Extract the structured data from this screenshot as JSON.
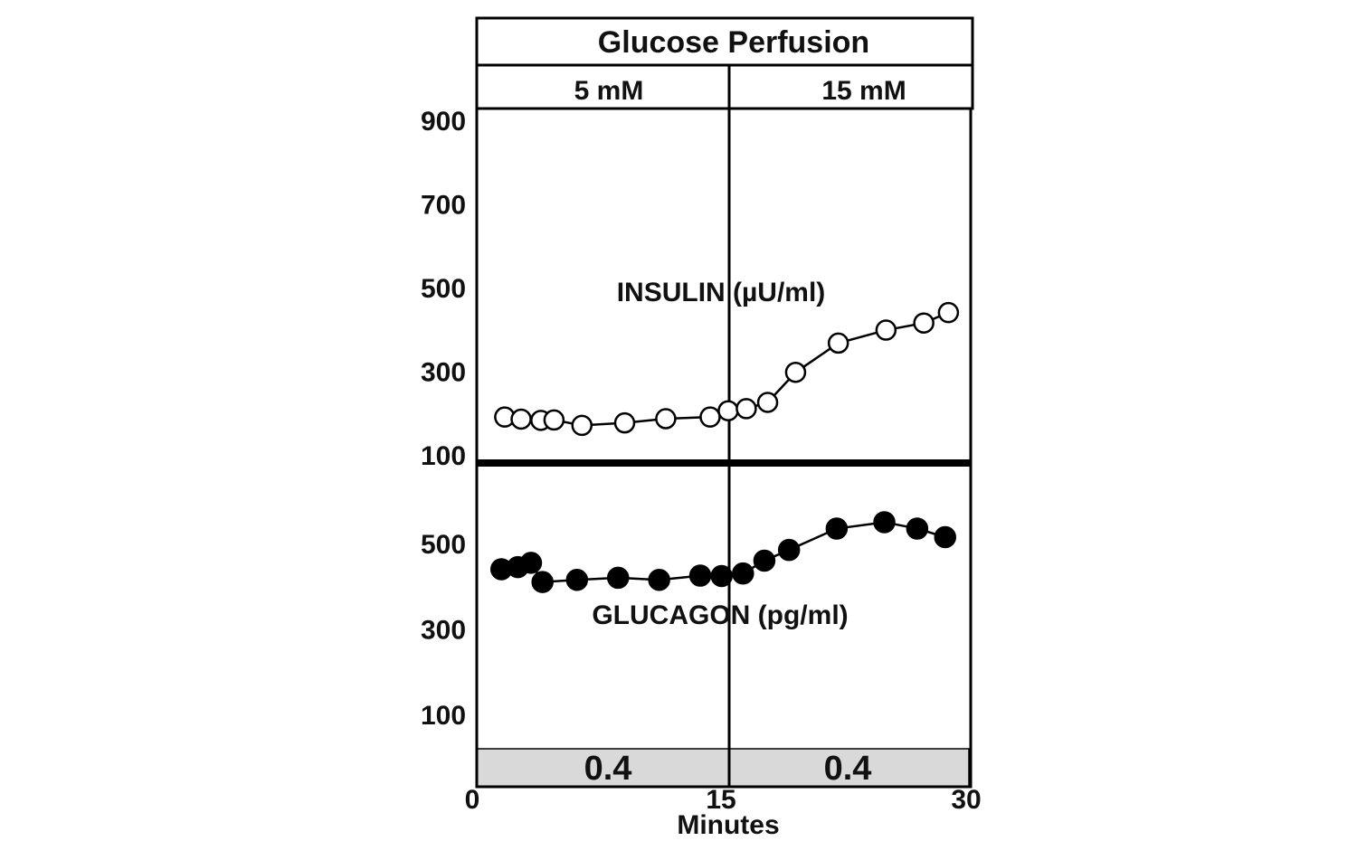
{
  "chart_data": {
    "type": "line",
    "title": "Glucose Perfusion",
    "phases": [
      "5 mM",
      "15 mM"
    ],
    "xlabel": "Minutes",
    "xlim": [
      0,
      30
    ],
    "x_ticks": [
      "0",
      "15",
      "30"
    ],
    "panels": [
      {
        "name": "insulin",
        "annotation": "INSULIN (µU/ml)",
        "ylim": [
          80,
          950
        ],
        "y_ticks": [
          {
            "value": 900,
            "label": "900"
          },
          {
            "value": 700,
            "label": "700"
          },
          {
            "value": 500,
            "label": "500"
          },
          {
            "value": 300,
            "label": "300"
          },
          {
            "value": 100,
            "label": "100"
          }
        ],
        "series": [
          {
            "marker": "open-circle",
            "points": [
              [
                1.7,
                190
              ],
              [
                2.7,
                185
              ],
              [
                3.9,
                182
              ],
              [
                4.7,
                183
              ],
              [
                6.4,
                170
              ],
              [
                9.0,
                176
              ],
              [
                11.5,
                186
              ],
              [
                14.2,
                190
              ],
              [
                15.3,
                205
              ],
              [
                16.4,
                210
              ],
              [
                17.7,
                225
              ],
              [
                19.4,
                297
              ],
              [
                22.0,
                367
              ],
              [
                24.9,
                398
              ],
              [
                27.2,
                415
              ],
              [
                28.7,
                440
              ]
            ]
          }
        ]
      },
      {
        "name": "glucagon",
        "annotation": "GLUCAGON (pg/ml)",
        "ylim": [
          20,
          680
        ],
        "y_ticks": [
          {
            "value": 500,
            "label": "500"
          },
          {
            "value": 300,
            "label": "300"
          },
          {
            "value": 100,
            "label": "100"
          }
        ],
        "series": [
          {
            "marker": "filled-circle",
            "points": [
              [
                1.5,
                440
              ],
              [
                2.5,
                445
              ],
              [
                3.3,
                455
              ],
              [
                4.0,
                410
              ],
              [
                6.1,
                415
              ],
              [
                8.6,
                420
              ],
              [
                11.1,
                415
              ],
              [
                13.6,
                425
              ],
              [
                14.9,
                424
              ],
              [
                16.2,
                430
              ],
              [
                17.5,
                460
              ],
              [
                19.0,
                485
              ],
              [
                21.9,
                535
              ],
              [
                24.8,
                550
              ],
              [
                26.8,
                535
              ],
              [
                28.5,
                515
              ]
            ]
          }
        ]
      }
    ],
    "bottom_values": [
      "0.4",
      "0.4"
    ],
    "colors": {
      "band_fill": "#d9d9d9",
      "line": "#000000",
      "open_marker_fill": "#ffffff",
      "filled_marker_fill": "#000000"
    }
  }
}
